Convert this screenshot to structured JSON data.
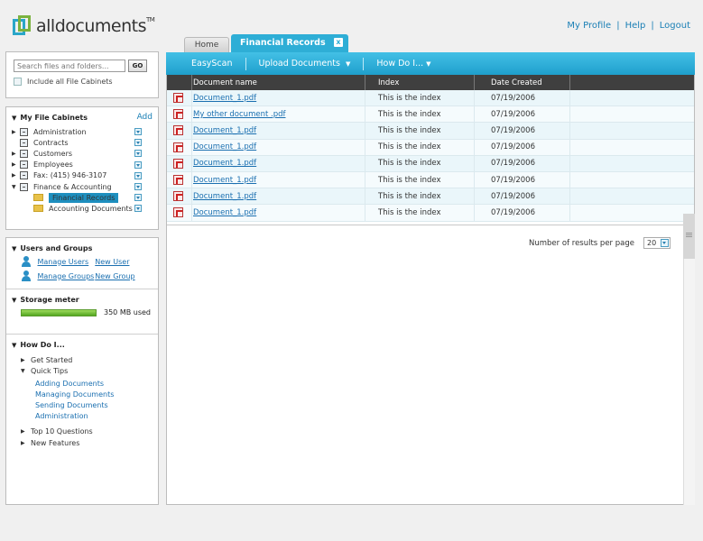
{
  "app": {
    "name": "alldocuments",
    "tm": "TM"
  },
  "header": {
    "links": [
      "My Profile",
      "Help",
      "Logout"
    ]
  },
  "search": {
    "placeholder": "Search files and folders...",
    "go_label": "GO",
    "include_label": "Include all File Cabinets"
  },
  "file_cabinets": {
    "title": "My File Cabinets",
    "add_label": "Add",
    "items": [
      {
        "label": "Administration"
      },
      {
        "label": "Contracts"
      },
      {
        "label": "Customers"
      },
      {
        "label": "Employees"
      },
      {
        "label": "Fax: (415) 946-3107"
      },
      {
        "label": "Finance & Accounting"
      }
    ],
    "subfolders": [
      {
        "label": "Financial Records",
        "selected": true
      },
      {
        "label": "Accounting Documents",
        "selected": false
      }
    ]
  },
  "users_groups": {
    "title": "Users and Groups",
    "manage_users": "Manage Users",
    "new_user": "New User",
    "manage_groups": "Manage Groups",
    "new_group": "New Group"
  },
  "storage": {
    "title": "Storage meter",
    "used_label": "350 MB used"
  },
  "howdo": {
    "title": "How Do I...",
    "get_started": "Get Started",
    "quick_tips": "Quick Tips",
    "tips": [
      "Adding Documents",
      "Managing Documents",
      "Sending Documents",
      "Administration"
    ],
    "top10": "Top 10 Questions",
    "new_features": "New Features"
  },
  "tabs": {
    "home": "Home",
    "active": "Financial Records",
    "close": "x"
  },
  "toolbar": {
    "easyscan": "EasyScan",
    "upload": "Upload Documents",
    "howdo": "How Do I..."
  },
  "table": {
    "headers": {
      "name": "Document name",
      "index": "Index",
      "date": "Date Created"
    },
    "rows": [
      {
        "name": "Document_1.pdf",
        "index": "This is the index",
        "date": "07/19/2006"
      },
      {
        "name": "My other document .pdf",
        "index": "This is the index",
        "date": "07/19/2006"
      },
      {
        "name": "Document_1.pdf",
        "index": "This is the index",
        "date": "07/19/2006"
      },
      {
        "name": "Document_1.pdf",
        "index": "This is the index",
        "date": "07/19/2006"
      },
      {
        "name": "Document_1.pdf",
        "index": "This is the index",
        "date": "07/19/2006"
      },
      {
        "name": "Document_1.pdf",
        "index": "This is the index",
        "date": "07/19/2006"
      },
      {
        "name": "Document_1.pdf",
        "index": "This is the index",
        "date": "07/19/2006"
      },
      {
        "name": "Document_1.pdf",
        "index": "This is the index",
        "date": "07/19/2006"
      }
    ],
    "results_label": "Number of results per page",
    "results_value": "20"
  },
  "colors": {
    "accent": "#2eaed6",
    "link": "#1a6fb0",
    "storage": "#6cc13a"
  }
}
